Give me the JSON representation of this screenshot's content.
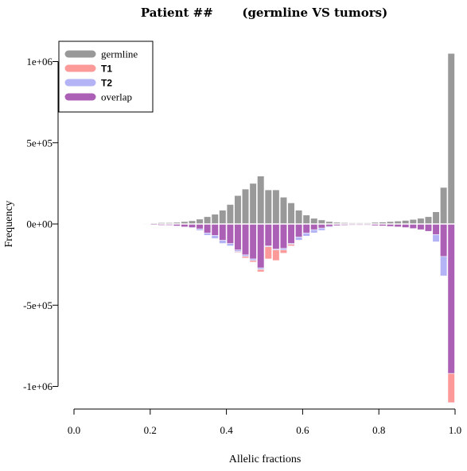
{
  "chart_data": {
    "type": "bar",
    "title": "Patient ##       (germline VS tumors)",
    "xlabel": "Allelic fractions",
    "ylabel": "Frequency",
    "xlim": [
      0,
      1
    ],
    "ylim": [
      -1100000,
      1100000
    ],
    "xticks": [
      {
        "value": 0.0,
        "label": "0.0"
      },
      {
        "value": 0.2,
        "label": "0.2"
      },
      {
        "value": 0.4,
        "label": "0.4"
      },
      {
        "value": 0.6,
        "label": "0.6"
      },
      {
        "value": 0.8,
        "label": "0.8"
      },
      {
        "value": 1.0,
        "label": "1.0"
      }
    ],
    "yticks": [
      {
        "value": 1000000,
        "label": "1e+06"
      },
      {
        "value": 500000,
        "label": "5e+05"
      },
      {
        "value": 0,
        "label": "0e+00"
      },
      {
        "value": -500000,
        "label": "-5e+05"
      },
      {
        "value": -1000000,
        "label": "-1e+06"
      }
    ],
    "bin_width": 0.02,
    "bin_starts": [
      0.0,
      0.02,
      0.04,
      0.06,
      0.08,
      0.1,
      0.12,
      0.14,
      0.16,
      0.18,
      0.2,
      0.22,
      0.24,
      0.26,
      0.28,
      0.3,
      0.32,
      0.34,
      0.36,
      0.38,
      0.4,
      0.42,
      0.44,
      0.46,
      0.48,
      0.5,
      0.52,
      0.54,
      0.56,
      0.58,
      0.6,
      0.62,
      0.64,
      0.66,
      0.68,
      0.7,
      0.72,
      0.74,
      0.76,
      0.78,
      0.8,
      0.82,
      0.84,
      0.86,
      0.88,
      0.9,
      0.92,
      0.94,
      0.96,
      0.98
    ],
    "legend_position": "top-left",
    "series": [
      {
        "name": "germline",
        "color": "#999999",
        "direction": "up",
        "values": [
          0,
          0,
          0,
          0,
          0,
          0,
          0,
          2000,
          2000,
          3000,
          5000,
          8000,
          8000,
          10000,
          15000,
          20000,
          30000,
          45000,
          60000,
          85000,
          120000,
          175000,
          215000,
          250000,
          295000,
          210000,
          210000,
          165000,
          130000,
          85000,
          55000,
          35000,
          25000,
          15000,
          10000,
          8000,
          7000,
          7000,
          7000,
          10000,
          12000,
          15000,
          18000,
          22000,
          28000,
          35000,
          45000,
          75000,
          225000,
          1050000
        ]
      },
      {
        "name": "T1",
        "color": "#fb9a99",
        "direction": "down",
        "values": [
          0,
          0,
          0,
          0,
          0,
          0,
          0,
          2000,
          2000,
          3000,
          5000,
          8000,
          8000,
          15000,
          20000,
          25000,
          35000,
          60000,
          80000,
          110000,
          130000,
          175000,
          210000,
          235000,
          295000,
          215000,
          225000,
          180000,
          135000,
          85000,
          55000,
          35000,
          25000,
          15000,
          10000,
          8000,
          7000,
          7000,
          7000,
          10000,
          12000,
          15000,
          20000,
          22000,
          28000,
          35000,
          45000,
          70000,
          200000,
          1100000
        ]
      },
      {
        "name": "T2",
        "color": "#b3b3f5",
        "direction": "down",
        "values": [
          0,
          0,
          0,
          0,
          0,
          0,
          0,
          2000,
          2000,
          3000,
          5000,
          8000,
          8000,
          15000,
          20000,
          25000,
          40000,
          70000,
          90000,
          120000,
          135000,
          170000,
          200000,
          225000,
          280000,
          140000,
          160000,
          160000,
          125000,
          100000,
          75000,
          55000,
          40000,
          20000,
          12000,
          8000,
          7000,
          7000,
          7000,
          10000,
          12000,
          15000,
          18000,
          22000,
          28000,
          35000,
          45000,
          110000,
          320000,
          920000
        ]
      },
      {
        "name": "overlap",
        "color": "#ab5fb5",
        "direction": "down",
        "values": [
          0,
          0,
          0,
          0,
          0,
          0,
          0,
          2000,
          2000,
          3000,
          5000,
          8000,
          8000,
          12000,
          18000,
          22000,
          30000,
          55000,
          70000,
          100000,
          120000,
          160000,
          190000,
          215000,
          270000,
          135000,
          155000,
          150000,
          120000,
          80000,
          55000,
          35000,
          25000,
          15000,
          10000,
          8000,
          7000,
          7000,
          7000,
          10000,
          12000,
          15000,
          18000,
          22000,
          28000,
          35000,
          45000,
          65000,
          200000,
          920000
        ]
      }
    ]
  }
}
